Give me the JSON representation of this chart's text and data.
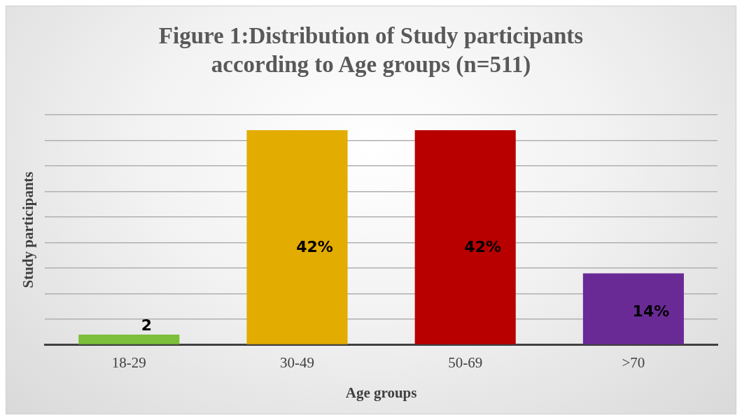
{
  "chart_data": {
    "type": "bar",
    "title": "Figure 1:Distribution of Study participants according to Age groups (n=511)",
    "xlabel": "Age groups",
    "ylabel": "Study participants",
    "categories": [
      "18-29",
      "30-49",
      "50-69",
      ">70"
    ],
    "values": [
      2,
      42,
      42,
      14
    ],
    "value_labels": [
      "2",
      "42%",
      "42%",
      "14%"
    ],
    "colors": [
      "#7cbf3a",
      "#e2ac00",
      "#b80000",
      "#6a2a96"
    ],
    "ylim": [
      0,
      45
    ],
    "yticks": [
      {
        "value": 0,
        "label": null
      },
      {
        "value": 5,
        "label": null
      },
      {
        "value": 10,
        "label": null
      },
      {
        "value": 15,
        "label": null
      },
      {
        "value": 20,
        "label": null
      },
      {
        "value": 25,
        "label": null
      },
      {
        "value": 30,
        "label": null
      },
      {
        "value": 35,
        "label": null
      },
      {
        "value": 40,
        "label": null
      },
      {
        "value": 45,
        "label": null
      }
    ],
    "grid": "y"
  }
}
